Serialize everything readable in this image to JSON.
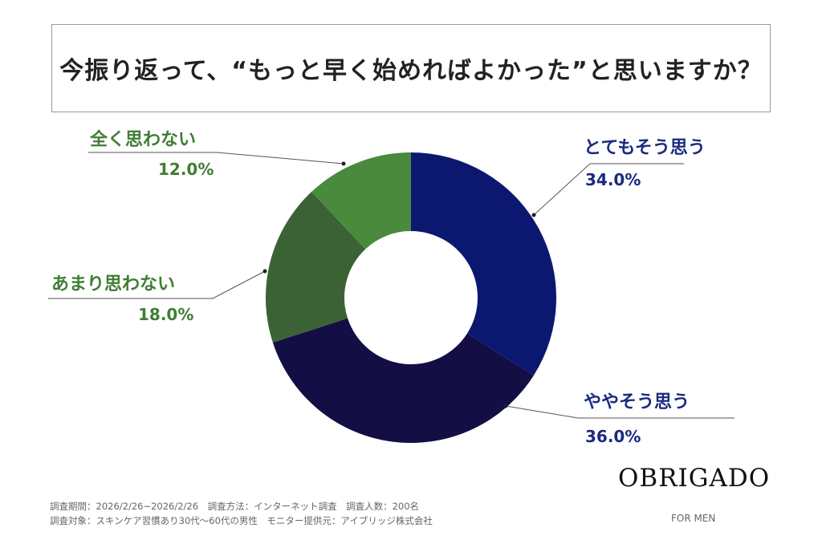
{
  "chart_data": {
    "type": "pie",
    "donut": true,
    "title": "今振り返って、“もっと早く始めればよかった”と思いますか？",
    "categories": [
      "とてもそう思う",
      "ややそう思う",
      "あまり思わない",
      "全く思わない"
    ],
    "values": [
      34.0,
      36.0,
      18.0,
      12.0
    ],
    "value_labels": [
      "34.0%",
      "36.0%",
      "18.0%",
      "12.0%"
    ],
    "colors": [
      "#0c1870",
      "#130f45",
      "#3b6234",
      "#4a8a3c"
    ],
    "label_colors": [
      "#1a2a80",
      "#1a2a80",
      "#3f7d34",
      "#3f7d34"
    ]
  },
  "footer": {
    "line1": "調査期間：2026/2/26~2026/2/26　調査方法：インターネット調査　調査人数：200名",
    "line2": "調査対象：スキンケア習慣あり30代～60代の男性　モニター提供元：アイブリッジ株式会社"
  },
  "brand": {
    "name": "OBRIGADO",
    "sub": "FOR MEN"
  }
}
